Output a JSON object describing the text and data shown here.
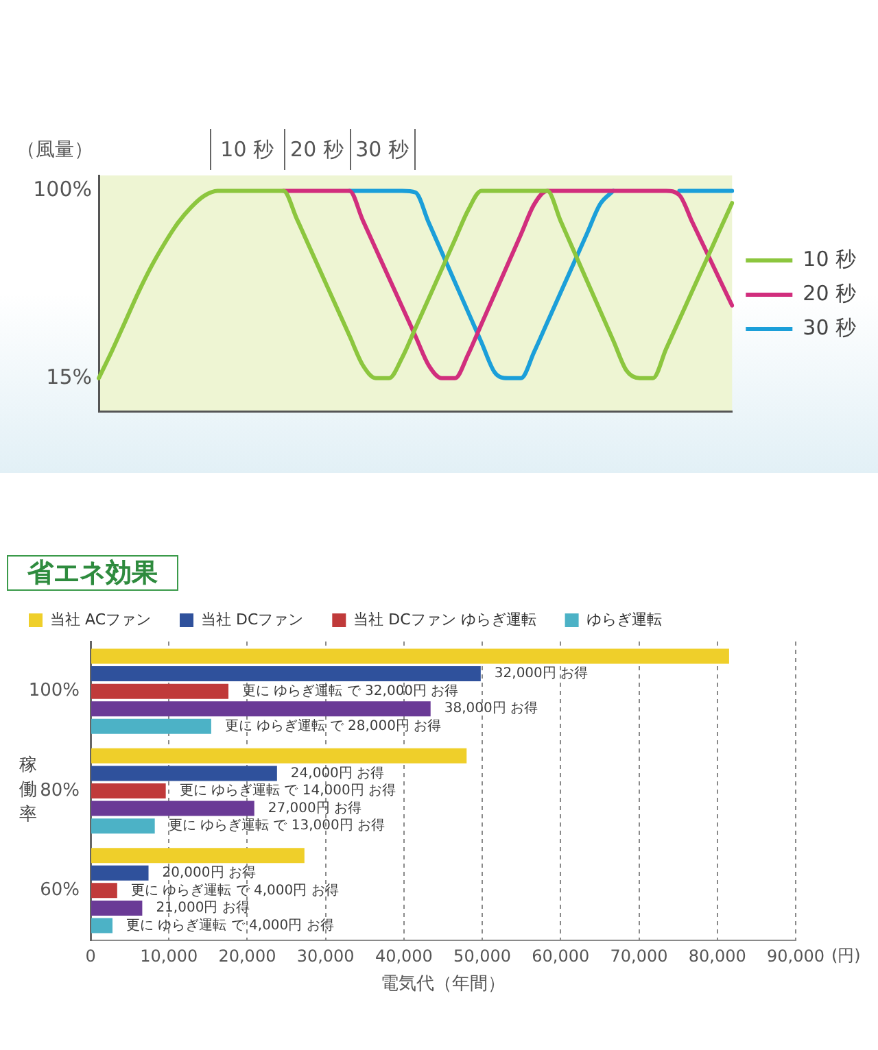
{
  "chart_data": [
    {
      "type": "line",
      "ylabel": "（風量）",
      "categories": [
        null,
        null,
        null,
        null,
        null,
        null,
        null,
        null,
        null,
        null,
        null,
        null,
        null,
        null,
        null,
        null,
        null,
        null,
        null,
        null,
        null,
        null,
        null,
        null,
        null,
        null,
        null,
        null,
        null,
        null,
        null,
        null,
        null,
        null,
        null,
        null,
        null,
        null,
        null,
        null,
        null,
        null,
        null,
        null,
        null,
        null,
        null,
        null,
        null
      ],
      "tick_labels": "y",
      "ylim": [
        0,
        107
      ],
      "yticks": [
        {
          "value": 15,
          "label": "15%"
        },
        {
          "value": 100,
          "label": "100%"
        }
      ],
      "legend": "right",
      "marker": "none",
      "line_style": "solid",
      "annotations": [
        "10 秒",
        "20 秒",
        "30 秒"
      ],
      "series": [
        {
          "name": "10 秒",
          "color": "#8cc63e",
          "values": [
            15,
            27.4,
            40.6,
            53.9,
            65.9,
            76.3,
            85.5,
            92.6,
            97.8,
            100,
            100,
            100,
            100,
            100,
            100,
            87.4,
            74.1,
            60.8,
            47.5,
            34.3,
            21,
            15,
            15,
            24.4,
            37.7,
            51.1,
            64.5,
            77.9,
            91.3,
            100,
            100,
            100,
            100,
            100,
            100,
            86.4,
            72.8,
            59.2,
            45.6,
            32,
            18.4,
            15,
            15,
            28.3,
            41.5,
            54.8,
            68,
            81.3,
            94.5
          ]
        },
        {
          "name": "20 秒",
          "color": "#d12e7d",
          "values": [
            null,
            null,
            null,
            null,
            null,
            null,
            null,
            null,
            null,
            null,
            null,
            null,
            null,
            null,
            100,
            100,
            100,
            100,
            100,
            100,
            86.8,
            73.6,
            60.4,
            47.3,
            34.1,
            20.9,
            15,
            15,
            25.9,
            39.5,
            53.1,
            66.7,
            80.3,
            93.9,
            100,
            100,
            100,
            100,
            100,
            100,
            100,
            100,
            100,
            100,
            98.1,
            85.6,
            73.1,
            60.5,
            48
          ]
        },
        {
          "name": "30 秒",
          "color": "#1b9fd9",
          "values": [
            null,
            null,
            null,
            null,
            null,
            null,
            null,
            null,
            null,
            null,
            null,
            null,
            null,
            null,
            null,
            null,
            null,
            null,
            null,
            100,
            100,
            100,
            100,
            100,
            99.3,
            85.7,
            72.1,
            58.5,
            44.9,
            31.3,
            17.7,
            15,
            15,
            27,
            40.4,
            53.8,
            67.2,
            80.6,
            94,
            100,
            null,
            null,
            null,
            null,
            100,
            100,
            100,
            100,
            100
          ]
        }
      ]
    },
    {
      "type": "bar",
      "orientation": "horizontal",
      "title": "省エネ効果",
      "categories": [
        "100%",
        "80%",
        "60%"
      ],
      "xlabel": "電気代（年間）",
      "ylabel": "稼働率",
      "xlim": [
        0,
        90000
      ],
      "xticks": [
        0,
        {
          "value": 10000,
          "label": "10,000"
        },
        {
          "value": 20000,
          "label": "20,000"
        },
        {
          "value": 30000,
          "label": "30,000"
        },
        {
          "value": 40000,
          "label": "40,000"
        },
        {
          "value": 50000,
          "label": "50,000"
        },
        {
          "value": 60000,
          "label": "60,000"
        },
        {
          "value": 70000,
          "label": "70,000"
        },
        {
          "value": 80000,
          "label": "80,000"
        },
        {
          "value": 90000,
          "label": "90,000"
        }
      ],
      "grid": "x",
      "legend": "top",
      "annotations": [
        "32,000円 お得",
        "更に ゆらぎ運転 で 32,000円 お得",
        "38,000円 お得",
        "更に ゆらぎ運転 で 28,000円 お得",
        "24,000円 お得",
        "更に ゆらぎ運転 で 14,000円 お得",
        "27,000円 お得",
        "更に ゆらぎ運転 で 13,000円 お得",
        "20,000円 お得",
        "更に ゆらぎ運転 で 4,000円 お得",
        "21,000円 お得",
        "更に ゆらぎ運転 で 4,000円 お得",
        "(円)"
      ],
      "series": [
        {
          "name": "当社 ACファン",
          "color": "#efcf2a",
          "values": [
            81500,
            48000,
            27300
          ]
        },
        {
          "name": "当社 DCファン",
          "color": "#2f519c",
          "values": [
            49800,
            23800,
            7400
          ]
        },
        {
          "name": "当社 DCファン ゆらぎ運転",
          "color": "#c03a3a",
          "values": [
            17600,
            9600,
            3400
          ]
        },
        {
          "color": "#6a3a96",
          "values": [
            43400,
            20900,
            6600
          ]
        },
        {
          "name": "ゆらぎ運転",
          "color": "#4cb2c6",
          "values": [
            15400,
            8200,
            2800
          ]
        }
      ]
    }
  ]
}
